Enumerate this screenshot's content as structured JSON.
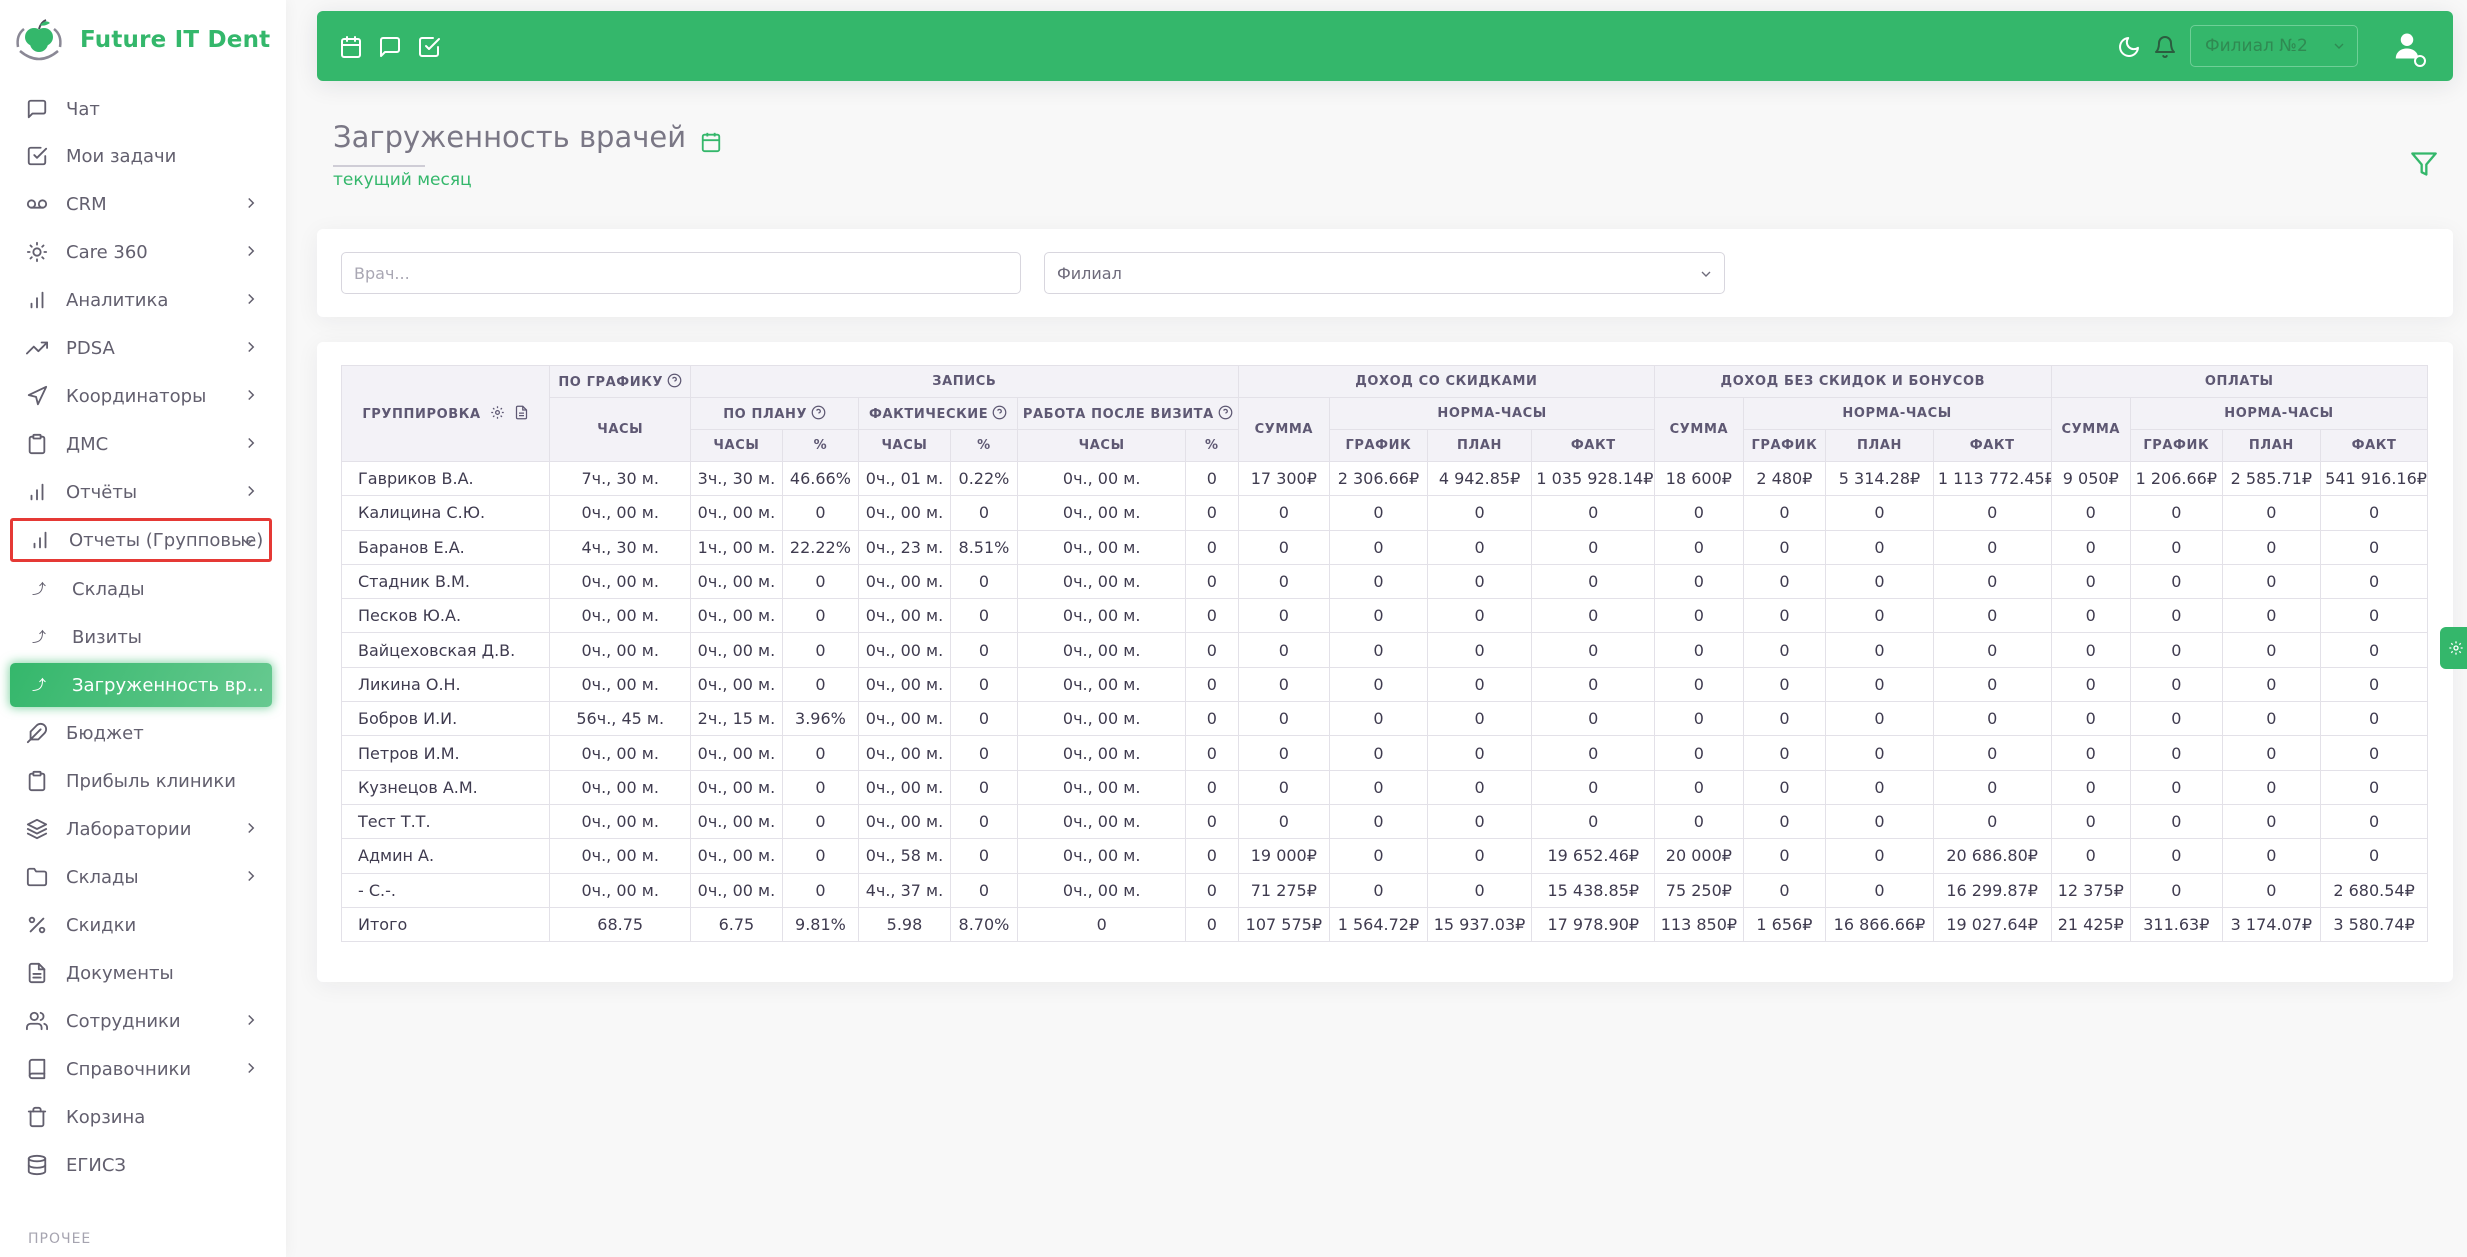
{
  "brand": {
    "name": "Future IT Dent",
    "accent": "#34b76b"
  },
  "sidebar": {
    "items": [
      {
        "label": "Чат",
        "icon": "chat-icon"
      },
      {
        "label": "Мои задачи",
        "icon": "checkbox-icon"
      },
      {
        "label": "CRM",
        "icon": "voicemail-icon",
        "has_children": true
      },
      {
        "label": "Care 360",
        "icon": "sun-icon",
        "has_children": true
      },
      {
        "label": "Аналитика",
        "icon": "bar-chart-icon",
        "has_children": true
      },
      {
        "label": "PDSA",
        "icon": "trending-up-icon",
        "has_children": true
      },
      {
        "label": "Координаторы",
        "icon": "send-icon",
        "has_children": true
      },
      {
        "label": "ДМС",
        "icon": "clipboard-icon",
        "has_children": true
      },
      {
        "label": "Отчёты",
        "icon": "bar-chart-icon",
        "has_children": true
      },
      {
        "label": "Отчеты (Групповые)",
        "icon": "bar-chart-icon",
        "has_children": true,
        "highlighted": true
      },
      {
        "label": "Склады",
        "icon": "sub-arrow-icon",
        "sub": true
      },
      {
        "label": "Визиты",
        "icon": "sub-arrow-icon",
        "sub": true
      },
      {
        "label": "Загруженность вр...",
        "icon": "sub-arrow-icon",
        "sub": true,
        "active": true
      },
      {
        "label": "Бюджет",
        "icon": "feather-icon"
      },
      {
        "label": "Прибыль клиники",
        "icon": "clipboard-icon"
      },
      {
        "label": "Лаборатории",
        "icon": "layers-icon",
        "has_children": true
      },
      {
        "label": "Склады",
        "icon": "folder-icon",
        "has_children": true
      },
      {
        "label": "Скидки",
        "icon": "percent-icon"
      },
      {
        "label": "Документы",
        "icon": "file-text-icon"
      },
      {
        "label": "Сотрудники",
        "icon": "users-icon",
        "has_children": true
      },
      {
        "label": "Справочники",
        "icon": "book-icon",
        "has_children": true
      },
      {
        "label": "Корзина",
        "icon": "trash-icon"
      },
      {
        "label": "ЕГИСЗ",
        "icon": "database-icon"
      }
    ],
    "section_label": "ПРОЧЕЕ"
  },
  "header": {
    "branch_value": "Филиал №2",
    "icons": [
      "calendar-icon",
      "message-icon",
      "check-square-icon",
      "moon-icon",
      "bell-icon",
      "user-icon"
    ]
  },
  "page": {
    "title": "Загруженность врачей",
    "period": "текущий месяц"
  },
  "filters": {
    "doctor_placeholder": "Врач...",
    "branch_placeholder": "Филиал"
  },
  "table": {
    "headers": {
      "grouping": "Группировка",
      "by_schedule": "По графику",
      "appointments": "Запись",
      "plan": "По плану",
      "actual": "Фактические",
      "after_visit": "Работа после визита",
      "income_disc": "Доход со скидками",
      "income_nodisc": "Доход без скидок и бонусов",
      "payments": "Оплаты",
      "hours": "Часы",
      "percent": "%",
      "sum": "Сумма",
      "norm_hours": "Норма-часы",
      "graph": "График",
      "plan_col": "План",
      "fact": "Факт"
    },
    "rows": [
      [
        "Гавриков В.А.",
        "7ч., 30 м.",
        "3ч., 30 м.",
        "46.66%",
        "0ч., 01 м.",
        "0.22%",
        "0ч., 00 м.",
        "0",
        "17 300₽",
        "2 306.66₽",
        "4 942.85₽",
        "1 035 928.14₽",
        "18 600₽",
        "2 480₽",
        "5 314.28₽",
        "1 113 772.45₽",
        "9 050₽",
        "1 206.66₽",
        "2 585.71₽",
        "541 916.16₽"
      ],
      [
        "Калицина С.Ю.",
        "0ч., 00 м.",
        "0ч., 00 м.",
        "0",
        "0ч., 00 м.",
        "0",
        "0ч., 00 м.",
        "0",
        "0",
        "0",
        "0",
        "0",
        "0",
        "0",
        "0",
        "0",
        "0",
        "0",
        "0",
        "0"
      ],
      [
        "Баранов Е.А.",
        "4ч., 30 м.",
        "1ч., 00 м.",
        "22.22%",
        "0ч., 23 м.",
        "8.51%",
        "0ч., 00 м.",
        "0",
        "0",
        "0",
        "0",
        "0",
        "0",
        "0",
        "0",
        "0",
        "0",
        "0",
        "0",
        "0"
      ],
      [
        "Стадник В.М.",
        "0ч., 00 м.",
        "0ч., 00 м.",
        "0",
        "0ч., 00 м.",
        "0",
        "0ч., 00 м.",
        "0",
        "0",
        "0",
        "0",
        "0",
        "0",
        "0",
        "0",
        "0",
        "0",
        "0",
        "0",
        "0"
      ],
      [
        "Песков Ю.А.",
        "0ч., 00 м.",
        "0ч., 00 м.",
        "0",
        "0ч., 00 м.",
        "0",
        "0ч., 00 м.",
        "0",
        "0",
        "0",
        "0",
        "0",
        "0",
        "0",
        "0",
        "0",
        "0",
        "0",
        "0",
        "0"
      ],
      [
        "Вайцеховская Д.В.",
        "0ч., 00 м.",
        "0ч., 00 м.",
        "0",
        "0ч., 00 м.",
        "0",
        "0ч., 00 м.",
        "0",
        "0",
        "0",
        "0",
        "0",
        "0",
        "0",
        "0",
        "0",
        "0",
        "0",
        "0",
        "0"
      ],
      [
        "Ликина О.Н.",
        "0ч., 00 м.",
        "0ч., 00 м.",
        "0",
        "0ч., 00 м.",
        "0",
        "0ч., 00 м.",
        "0",
        "0",
        "0",
        "0",
        "0",
        "0",
        "0",
        "0",
        "0",
        "0",
        "0",
        "0",
        "0"
      ],
      [
        "Бобров И.И.",
        "56ч., 45 м.",
        "2ч., 15 м.",
        "3.96%",
        "0ч., 00 м.",
        "0",
        "0ч., 00 м.",
        "0",
        "0",
        "0",
        "0",
        "0",
        "0",
        "0",
        "0",
        "0",
        "0",
        "0",
        "0",
        "0"
      ],
      [
        "Петров И.М.",
        "0ч., 00 м.",
        "0ч., 00 м.",
        "0",
        "0ч., 00 м.",
        "0",
        "0ч., 00 м.",
        "0",
        "0",
        "0",
        "0",
        "0",
        "0",
        "0",
        "0",
        "0",
        "0",
        "0",
        "0",
        "0"
      ],
      [
        "Кузнецов А.М.",
        "0ч., 00 м.",
        "0ч., 00 м.",
        "0",
        "0ч., 00 м.",
        "0",
        "0ч., 00 м.",
        "0",
        "0",
        "0",
        "0",
        "0",
        "0",
        "0",
        "0",
        "0",
        "0",
        "0",
        "0",
        "0"
      ],
      [
        "Тест Т.Т.",
        "0ч., 00 м.",
        "0ч., 00 м.",
        "0",
        "0ч., 00 м.",
        "0",
        "0ч., 00 м.",
        "0",
        "0",
        "0",
        "0",
        "0",
        "0",
        "0",
        "0",
        "0",
        "0",
        "0",
        "0",
        "0"
      ],
      [
        "Админ А.",
        "0ч., 00 м.",
        "0ч., 00 м.",
        "0",
        "0ч., 58 м.",
        "0",
        "0ч., 00 м.",
        "0",
        "19 000₽",
        "0",
        "0",
        "19 652.46₽",
        "20 000₽",
        "0",
        "0",
        "20 686.80₽",
        "0",
        "0",
        "0",
        "0"
      ],
      [
        "- С.-.",
        "0ч., 00 м.",
        "0ч., 00 м.",
        "0",
        "4ч., 37 м.",
        "0",
        "0ч., 00 м.",
        "0",
        "71 275₽",
        "0",
        "0",
        "15 438.85₽",
        "75 250₽",
        "0",
        "0",
        "16 299.87₽",
        "12 375₽",
        "0",
        "0",
        "2 680.54₽"
      ]
    ],
    "total": [
      "Итого",
      "68.75",
      "6.75",
      "9.81%",
      "5.98",
      "8.70%",
      "0",
      "0",
      "107 575₽",
      "1 564.72₽",
      "15 937.03₽",
      "17 978.90₽",
      "113 850₽",
      "1 656₽",
      "16 866.66₽",
      "19 027.64₽",
      "21 425₽",
      "311.63₽",
      "3 174.07₽",
      "3 580.74₽"
    ]
  }
}
